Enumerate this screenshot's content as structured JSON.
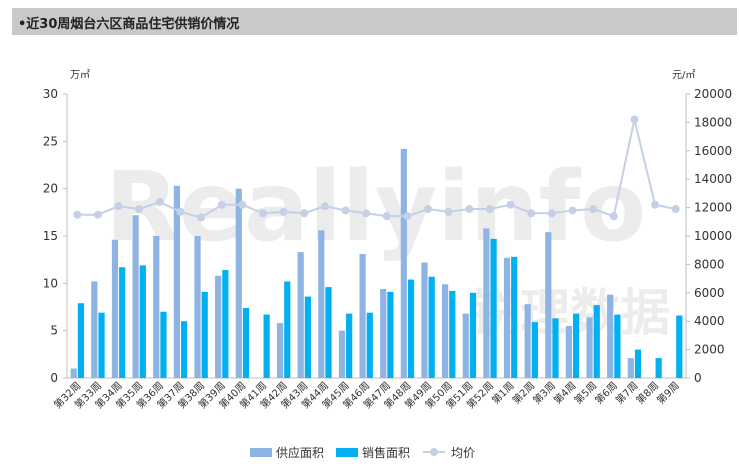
{
  "title": "•近30周烟台六区商品住宅供销价情况",
  "watermark": {
    "brand": "Reallyinfo",
    "cn": "锐理数据"
  },
  "colors": {
    "supply": "#8db4e2",
    "sales": "#00b0f0",
    "price": "#c5d0e6",
    "axis": "#bfbfbf"
  },
  "chart_data": {
    "type": "bar",
    "categories": [
      "第32周",
      "第33周",
      "第34周",
      "第35周",
      "第36周",
      "第37周",
      "第38周",
      "第39周",
      "第40周",
      "第41周",
      "第42周",
      "第43周",
      "第44周",
      "第45周",
      "第46周",
      "第47周",
      "第48周",
      "第49周",
      "第50周",
      "第51周",
      "第52周",
      "第1周",
      "第2周",
      "第3周",
      "第4周",
      "第5周",
      "第6周",
      "第7周",
      "第8周",
      "第9周"
    ],
    "y_left": {
      "unit": "万㎡",
      "lim": [
        0,
        30
      ],
      "ticks": [
        0,
        5,
        10,
        15,
        20,
        25,
        30
      ]
    },
    "y_right": {
      "unit": "元/㎡",
      "lim": [
        0,
        20000
      ],
      "ticks": [
        0,
        2000,
        4000,
        6000,
        8000,
        10000,
        12000,
        14000,
        16000,
        18000,
        20000
      ]
    },
    "series": [
      {
        "name": "供应面积",
        "kind": "bar",
        "axis": "left",
        "values": [
          1.0,
          10.2,
          14.6,
          17.2,
          15.0,
          20.3,
          15.0,
          10.8,
          20.0,
          0,
          5.8,
          13.3,
          15.6,
          5.0,
          13.1,
          9.4,
          24.2,
          12.2,
          9.9,
          6.8,
          15.8,
          12.7,
          7.8,
          15.4,
          5.5,
          6.4,
          8.8,
          2.1,
          0,
          0
        ]
      },
      {
        "name": "销售面积",
        "kind": "bar",
        "axis": "left",
        "values": [
          7.9,
          6.9,
          11.7,
          11.9,
          7.0,
          6.0,
          9.1,
          11.4,
          7.4,
          6.7,
          10.2,
          8.6,
          9.6,
          6.8,
          6.9,
          9.1,
          10.4,
          10.7,
          9.2,
          9.0,
          14.7,
          12.8,
          5.9,
          6.3,
          6.8,
          7.7,
          6.7,
          3.0,
          2.1,
          6.6
        ]
      },
      {
        "name": "均价",
        "kind": "line",
        "axis": "right",
        "values": [
          11500,
          11500,
          12100,
          11900,
          12400,
          11700,
          11300,
          12200,
          12200,
          11600,
          11700,
          11600,
          12100,
          11800,
          11600,
          11400,
          11400,
          11900,
          11700,
          11900,
          11900,
          12200,
          11600,
          11600,
          11800,
          11900,
          11400,
          18200,
          12200,
          11900
        ]
      }
    ],
    "legend": [
      "供应面积",
      "销售面积",
      "均价"
    ],
    "legend_position": "bottom-center",
    "grid": false
  }
}
